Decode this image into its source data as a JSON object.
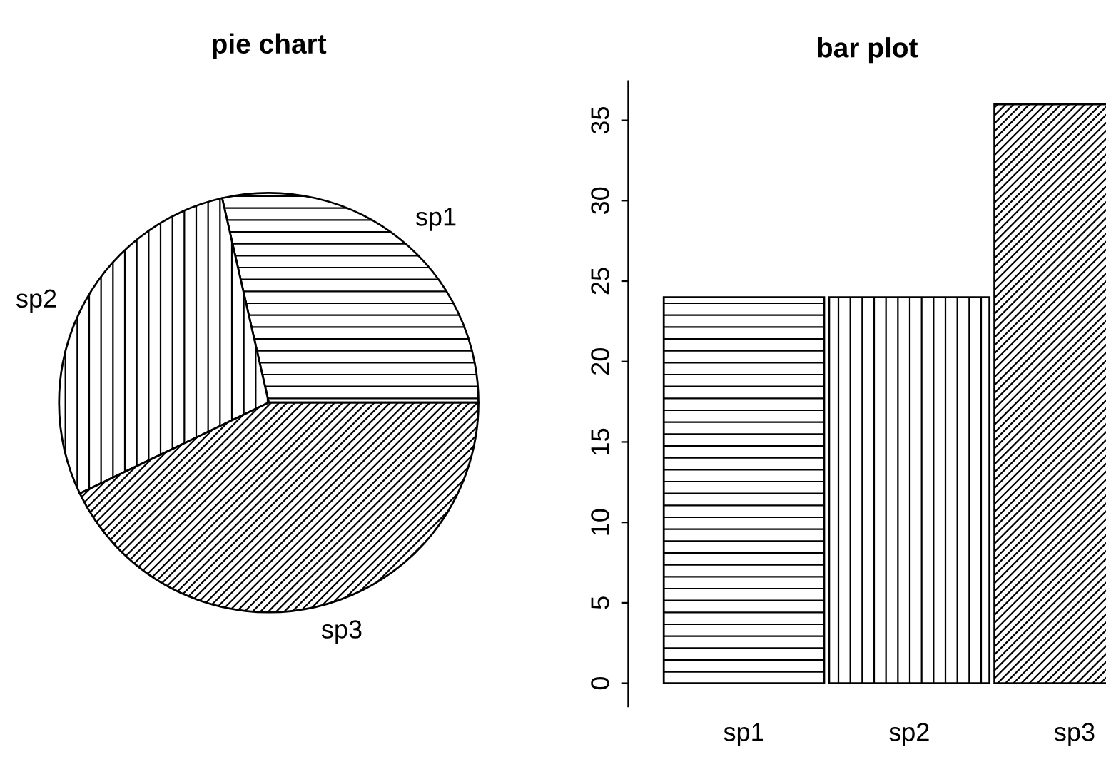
{
  "chart_data": [
    {
      "type": "pie",
      "title": "pie chart",
      "categories": [
        "sp1",
        "sp2",
        "sp3"
      ],
      "values": [
        28.57,
        28.57,
        42.86
      ],
      "colors": [
        "#000000",
        "#000000",
        "#000000"
      ]
    },
    {
      "type": "bar",
      "title": "bar plot",
      "categories": [
        "sp1",
        "sp2",
        "sp3"
      ],
      "values": [
        24,
        24,
        36
      ],
      "color": "#000000",
      "ylim": [
        -1.44,
        37.44
      ],
      "yticks": [
        0,
        5,
        10,
        15,
        20,
        25,
        30,
        35
      ],
      "grid": false
    }
  ]
}
